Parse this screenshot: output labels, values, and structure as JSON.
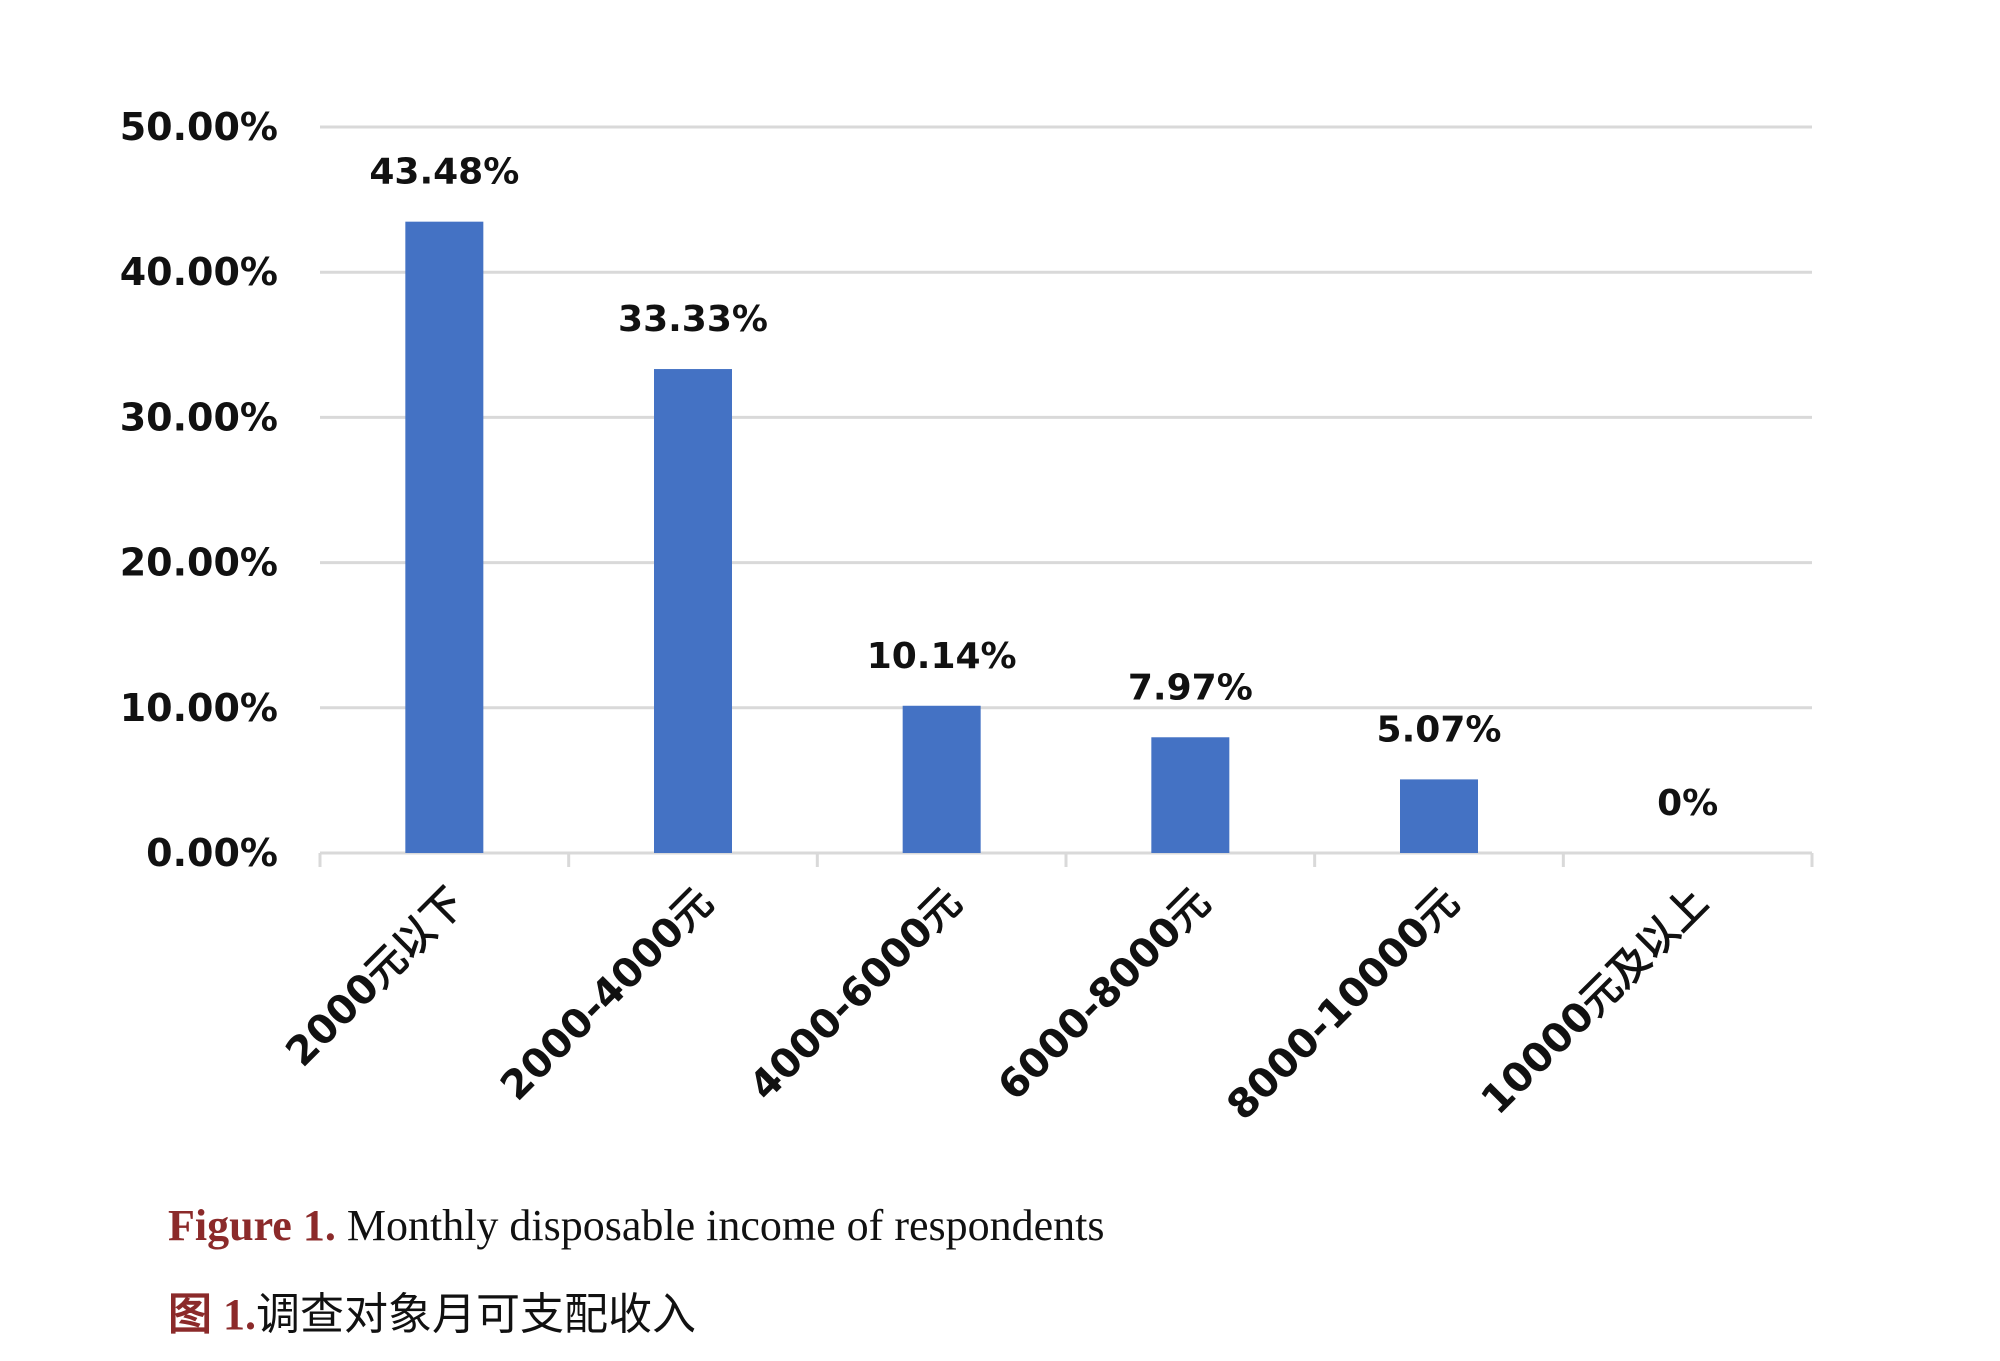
{
  "chart_data": {
    "type": "bar",
    "title": "",
    "xlabel": "",
    "ylabel": "",
    "ylim": [
      0,
      50
    ],
    "y_ticks": [
      "0.00%",
      "10.00%",
      "20.00%",
      "30.00%",
      "40.00%",
      "50.00%"
    ],
    "y_tick_values": [
      0,
      10,
      20,
      30,
      40,
      50
    ],
    "categories": [
      "2000元以下",
      "2000-4000元",
      "4000-6000元",
      "6000-8000元",
      "8000-10000元",
      "10000元及以上"
    ],
    "values": [
      43.48,
      33.33,
      10.14,
      7.97,
      5.07,
      0
    ],
    "data_labels": [
      "43.48%",
      "33.33%",
      "10.14%",
      "7.97%",
      "5.07%",
      "0%"
    ],
    "bar_color": "#4472c4",
    "gridlines": true,
    "legend": "none"
  },
  "caption": {
    "en_figure_no": "Figure 1.",
    "en_text": " Monthly disposable income of respondents",
    "zh_figure_no": "图 1.",
    "zh_text": "调查对象月可支配收入",
    "figure_no_color": "#8b2a2a"
  }
}
